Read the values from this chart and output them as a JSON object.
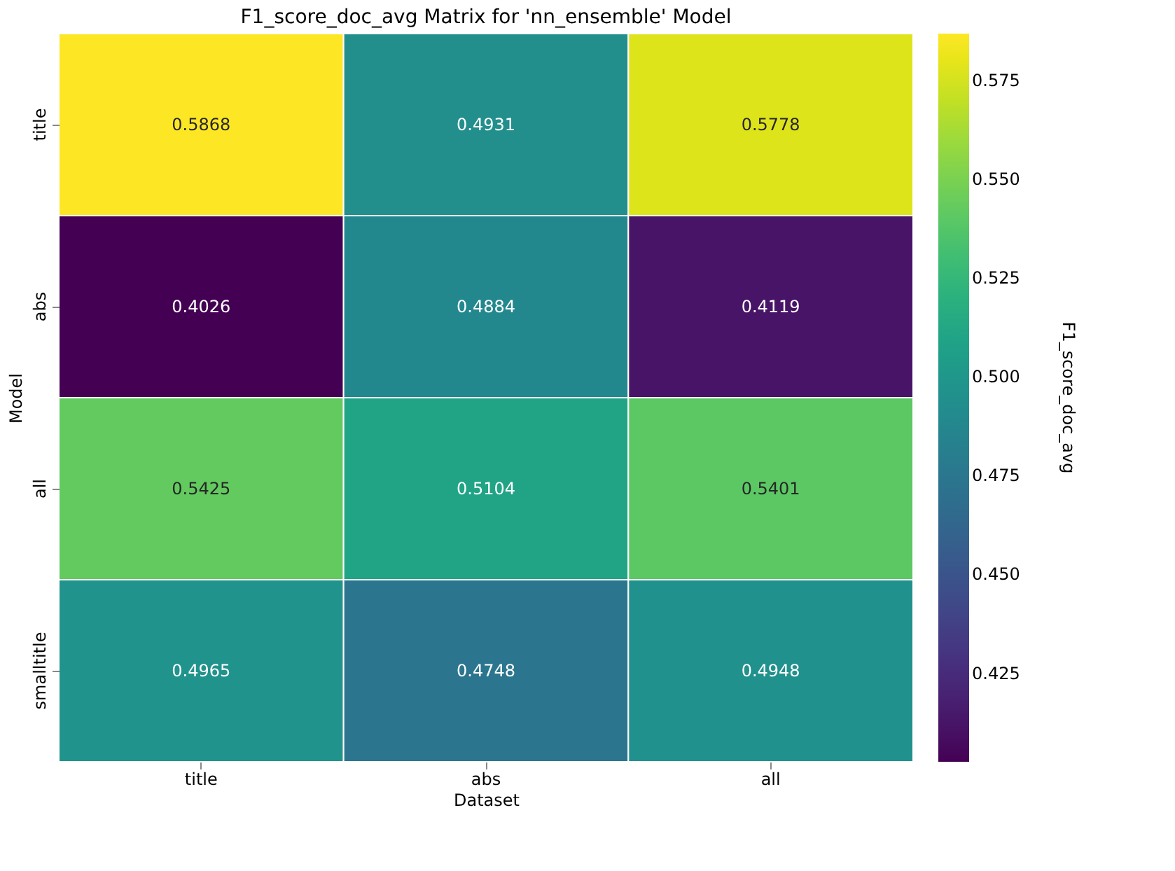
{
  "chart_data": {
    "type": "heatmap",
    "title": "F1_score_doc_avg Matrix for 'nn_ensemble' Model",
    "xlabel": "Dataset",
    "ylabel": "Model",
    "clabel": "F1_score_doc_avg",
    "categories": [
      "title",
      "abs",
      "all"
    ],
    "y_categories": [
      "title",
      "abs",
      "all",
      "smalltitle"
    ],
    "cells": [
      [
        0.5868,
        0.4931,
        0.5778
      ],
      [
        0.4026,
        0.4884,
        0.4119
      ],
      [
        0.5425,
        0.5104,
        0.5401
      ],
      [
        0.4965,
        0.4748,
        0.4948
      ]
    ],
    "clim": [
      0.4026,
      0.5868
    ],
    "cticks": [
      0.425,
      {
        "value": 0.45,
        "label": "0.450"
      },
      0.475,
      {
        "value": 0.5,
        "label": "0.500"
      },
      0.525,
      {
        "value": 0.55,
        "label": "0.550"
      },
      0.575
    ],
    "data_labels": true
  }
}
